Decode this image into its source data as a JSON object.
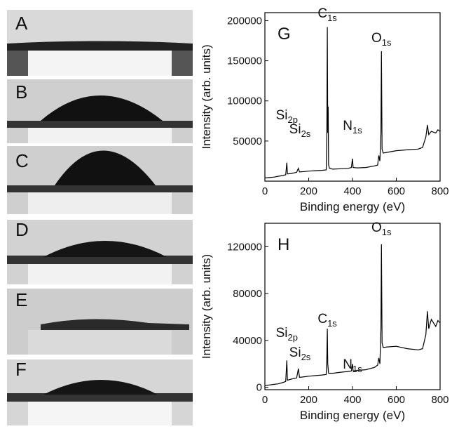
{
  "photos": [
    {
      "label": "A"
    },
    {
      "label": "B"
    },
    {
      "label": "C"
    },
    {
      "label": "D"
    },
    {
      "label": "E"
    },
    {
      "label": "F"
    }
  ],
  "chart_data": [
    {
      "type": "line",
      "panel_label": "G",
      "x_label": "Binding energy (eV)",
      "y_label": "Intensity (arb. units)",
      "xlim": [
        0,
        800
      ],
      "xticks": [
        0,
        200,
        400,
        600,
        800
      ],
      "ylim": [
        0,
        210000
      ],
      "yticks": [
        50000,
        100000,
        150000,
        200000
      ],
      "color": "#000000",
      "annotations": [
        {
          "text": "C",
          "sub": "1s"
        },
        {
          "text": "O",
          "sub": "1s"
        },
        {
          "text": "Si",
          "sub": "2p"
        },
        {
          "text": "Si",
          "sub": "2s"
        },
        {
          "text": "N",
          "sub": "1s"
        }
      ],
      "x": [
        0,
        20,
        40,
        60,
        80,
        95,
        100,
        103,
        120,
        145,
        153,
        158,
        180,
        200,
        230,
        260,
        280,
        283,
        285,
        287,
        289,
        291,
        295,
        310,
        350,
        380,
        395,
        400,
        403,
        420,
        460,
        500,
        515,
        520,
        525,
        530,
        532,
        535,
        540,
        560,
        600,
        650,
        700,
        720,
        735,
        742,
        748,
        760,
        780,
        790,
        800
      ],
      "y": [
        4000,
        4500,
        5000,
        6000,
        7000,
        8000,
        23000,
        9000,
        9500,
        11000,
        16000,
        11500,
        12000,
        12500,
        13000,
        13500,
        14000,
        60000,
        192000,
        60000,
        93000,
        20000,
        16000,
        15000,
        15500,
        16000,
        17000,
        28000,
        17000,
        16500,
        17000,
        19000,
        20000,
        32000,
        25000,
        60000,
        162000,
        40000,
        35000,
        36000,
        38000,
        39000,
        40000,
        42000,
        55000,
        70000,
        58000,
        62000,
        60000,
        64000,
        62000
      ]
    },
    {
      "type": "line",
      "panel_label": "H",
      "x_label": "Binding energy (eV)",
      "y_label": "Intensity (arb. units)",
      "xlim": [
        0,
        800
      ],
      "xticks": [
        0,
        200,
        400,
        600,
        800
      ],
      "ylim": [
        -2000,
        140000
      ],
      "yticks": [
        0,
        40000,
        80000,
        120000
      ],
      "color": "#000000",
      "annotations": [
        {
          "text": "O",
          "sub": "1s"
        },
        {
          "text": "C",
          "sub": "1s"
        },
        {
          "text": "Si",
          "sub": "2p"
        },
        {
          "text": "Si",
          "sub": "2s"
        },
        {
          "text": "N",
          "sub": "1s"
        }
      ],
      "x": [
        0,
        20,
        40,
        60,
        80,
        95,
        100,
        103,
        120,
        145,
        153,
        158,
        180,
        200,
        230,
        260,
        280,
        283,
        285,
        287,
        291,
        310,
        350,
        380,
        395,
        400,
        403,
        420,
        460,
        500,
        515,
        520,
        525,
        530,
        532,
        535,
        540,
        560,
        600,
        650,
        700,
        720,
        735,
        742,
        748,
        760,
        780,
        790,
        800
      ],
      "y": [
        1500,
        2000,
        2500,
        3000,
        4000,
        5000,
        23000,
        6000,
        7000,
        8000,
        16000,
        8500,
        9000,
        9500,
        10000,
        10500,
        11000,
        25000,
        50000,
        20000,
        12000,
        12000,
        13000,
        13500,
        14000,
        20000,
        14000,
        14500,
        15000,
        17000,
        19000,
        25000,
        20000,
        50000,
        122000,
        38000,
        34000,
        34500,
        35000,
        33000,
        32000,
        33000,
        45000,
        65000,
        50000,
        58000,
        52000,
        57000,
        55000
      ]
    }
  ]
}
